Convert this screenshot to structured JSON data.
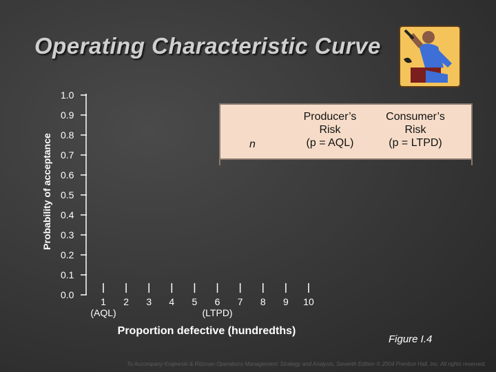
{
  "slide": {
    "title": "Operating Characteristic Curve",
    "figure_label": "Figure I.4",
    "footer": "To Accompany Krajewski & Ritzman Operations Management: Strategy and Analysis, Seventh Edition © 2004 Prentice Hall, Inc. All rights reserved.",
    "clipart_icon": "worker-with-wrench-icon"
  },
  "table": {
    "col_n": "n",
    "col_producer": [
      "Producer’s",
      "Risk",
      "(p = AQL)"
    ],
    "col_consumer": [
      "Consumer’s",
      "Risk",
      "(p = LTPD)"
    ]
  },
  "chart_data": {
    "type": "line",
    "title": "",
    "ylabel": "Probability of acceptance",
    "xlabel": "Proportion defective (hundredths)",
    "ylim": [
      0,
      1.0
    ],
    "xlim": [
      0,
      10
    ],
    "y_ticks": [
      "0.0",
      "0.1",
      "0.2",
      "0.3",
      "0.4",
      "0.5",
      "0.6",
      "0.7",
      "0.8",
      "0.9",
      "1.0"
    ],
    "x_ticks": [
      "1",
      "2",
      "3",
      "4",
      "5",
      "6",
      "7",
      "8",
      "9",
      "10"
    ],
    "x_tick_sublabels": {
      "1": "(AQL)",
      "6": "(LTPD)"
    },
    "series": [],
    "grid": false,
    "colors": {
      "axis": "#ffffff",
      "table_bg": "#f6dcc8",
      "table_border": "#8a7a70"
    }
  }
}
